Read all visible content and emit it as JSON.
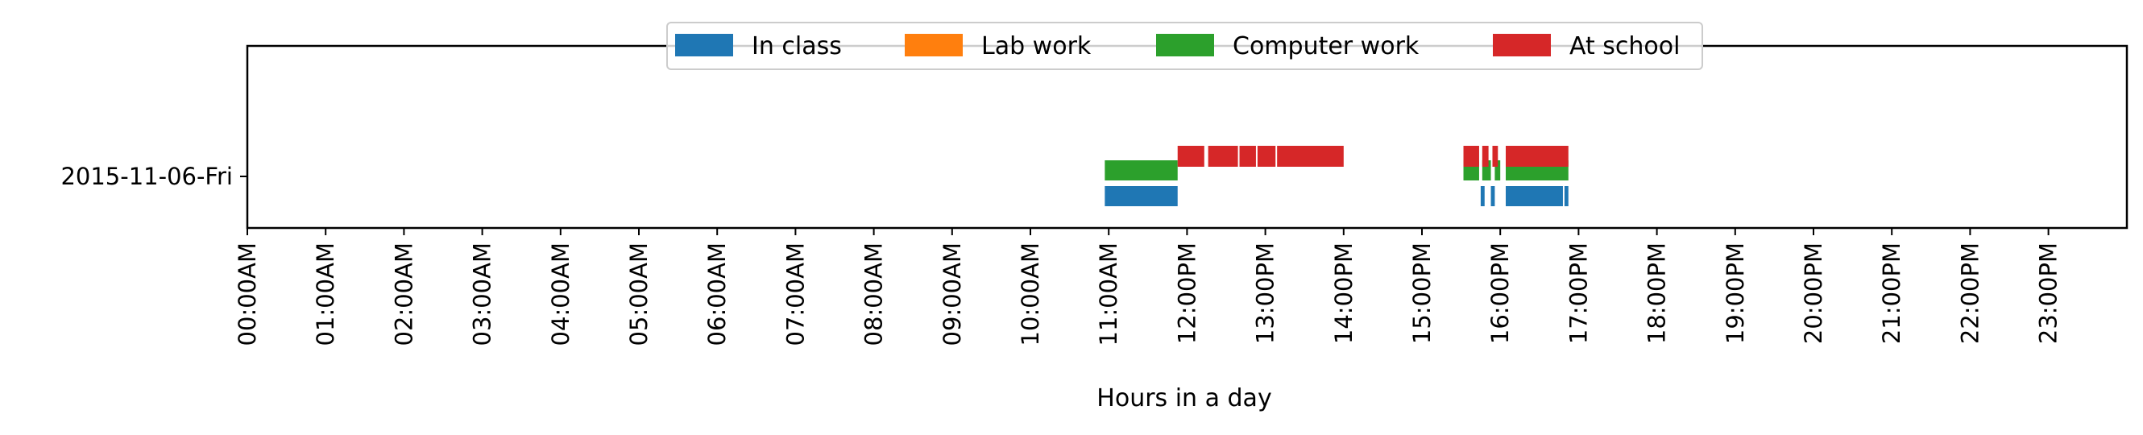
{
  "chart_data": {
    "type": "bar",
    "orientation": "horizontal-timeline",
    "title": "",
    "xlabel": "Hours in a day",
    "ylabel": "",
    "xlim": [
      0,
      24
    ],
    "x_ticks": [
      "00:00AM",
      "01:00AM",
      "02:00AM",
      "03:00AM",
      "04:00AM",
      "05:00AM",
      "06:00AM",
      "07:00AM",
      "08:00AM",
      "09:00AM",
      "10:00AM",
      "11:00AM",
      "12:00PM",
      "13:00PM",
      "14:00PM",
      "15:00PM",
      "16:00PM",
      "17:00PM",
      "18:00PM",
      "19:00PM",
      "20:00PM",
      "21:00PM",
      "22:00PM",
      "23:00PM"
    ],
    "categories": [
      "2015-11-06-Fri"
    ],
    "grid": false,
    "legend_position": "upper-center",
    "series": [
      {
        "name": "In class",
        "color": "#1f77b4",
        "intervals": [
          [
            10.95,
            11.88
          ],
          [
            15.75,
            15.8
          ],
          [
            15.88,
            15.93
          ],
          [
            16.07,
            16.8
          ],
          [
            16.82,
            16.87
          ]
        ]
      },
      {
        "name": "Lab work",
        "color": "#ff7f0e",
        "intervals": []
      },
      {
        "name": "Computer work",
        "color": "#2ca02c",
        "intervals": [
          [
            10.95,
            11.88
          ],
          [
            15.53,
            15.73
          ],
          [
            15.77,
            15.88
          ],
          [
            15.93,
            16.0
          ],
          [
            16.07,
            16.87
          ]
        ]
      },
      {
        "name": "At school",
        "color": "#d62728",
        "intervals": [
          [
            11.88,
            12.22
          ],
          [
            12.27,
            12.65
          ],
          [
            12.67,
            12.88
          ],
          [
            12.9,
            13.13
          ],
          [
            13.15,
            14.0
          ],
          [
            15.53,
            15.73
          ],
          [
            15.77,
            15.85
          ],
          [
            15.9,
            15.97
          ],
          [
            16.07,
            16.87
          ]
        ]
      }
    ]
  }
}
